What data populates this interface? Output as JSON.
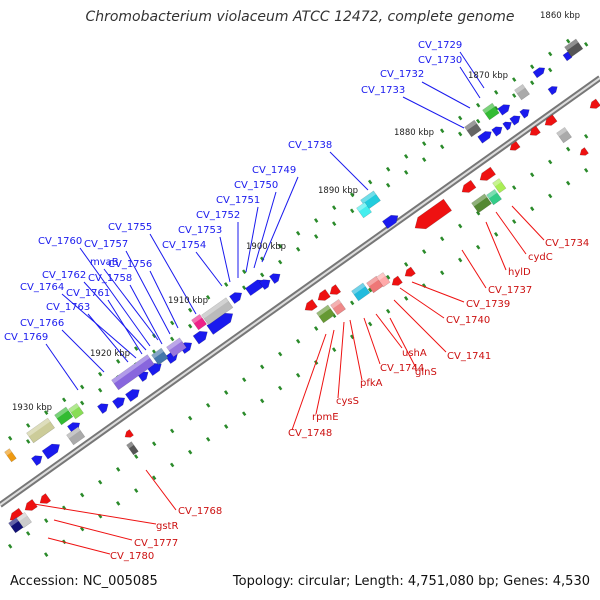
{
  "title": "Chromobacterium violaceum ATCC 12472, complete genome",
  "footer": {
    "accession": "Accession: NC_005085",
    "summary": "Topology: circular; Length: 4,751,080 bp; Genes: 4,530"
  },
  "colors": {
    "forward": "#1a1aee",
    "reverse": "#ee1111",
    "backbone": "#888888",
    "tick": "#2a8a2a"
  },
  "ticks": [
    "1860 kbp",
    "1870 kbp",
    "1880 kbp",
    "1890 kbp",
    "1900 kbp",
    "1910 kbp",
    "1920 kbp",
    "1930 kbp"
  ],
  "labels_forward": [
    "CV_1729",
    "CV_1730",
    "CV_1732",
    "CV_1733",
    "CV_1738",
    "CV_1749",
    "CV_1750",
    "CV_1751",
    "CV_1752",
    "CV_1753",
    "CV_1754",
    "CV_1755",
    "CV_1756",
    "CV_1757",
    "mvaB",
    "CV_1760",
    "CV_1758",
    "CV_1762",
    "CV_1761",
    "CV_1764",
    "CV_1763",
    "CV_1766",
    "CV_1769"
  ],
  "labels_reverse": [
    "CV_1734",
    "cydC",
    "hylD",
    "CV_1737",
    "CV_1739",
    "CV_1740",
    "CV_1741",
    "ushA",
    "glnS",
    "CV_1744",
    "pfkA",
    "cysS",
    "rpmE",
    "CV_1748",
    "CV_1768",
    "gstR",
    "CV_1777",
    "CV_1780"
  ]
}
